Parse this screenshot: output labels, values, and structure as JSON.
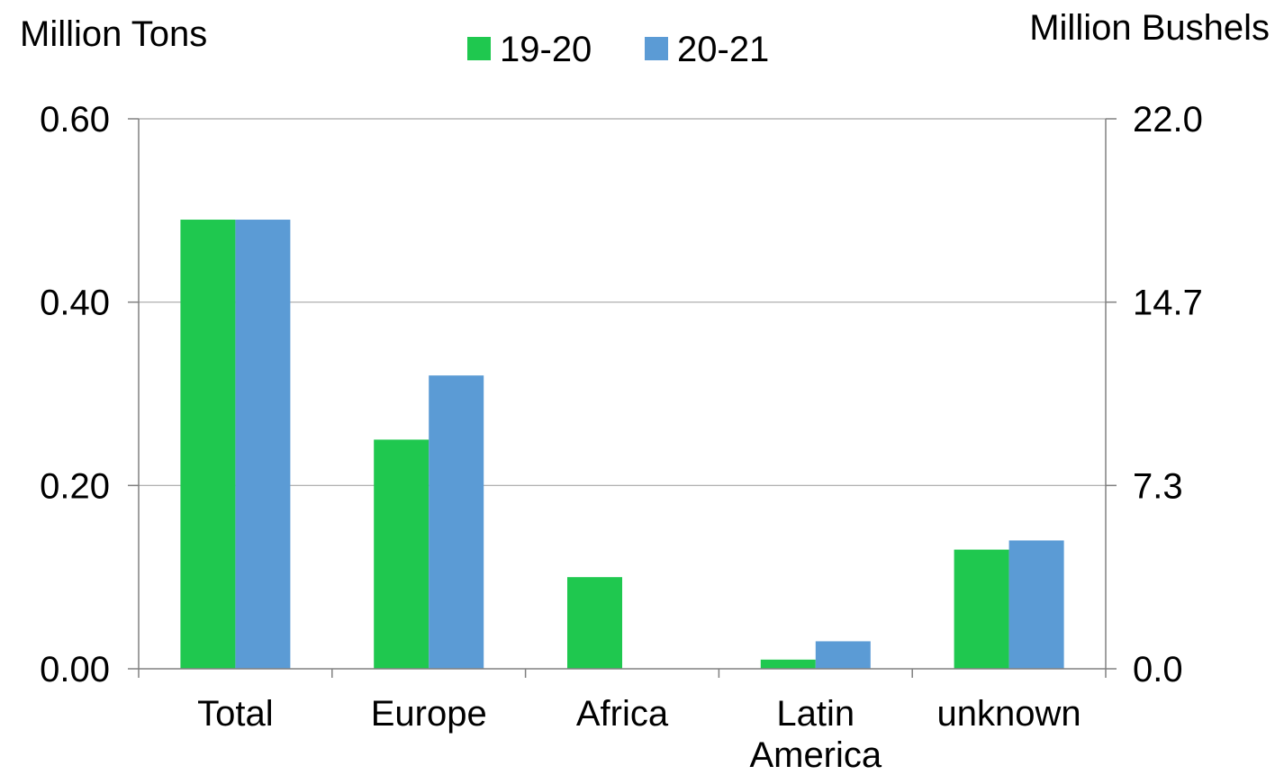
{
  "chart_data": {
    "type": "bar",
    "categories": [
      "Total",
      "Europe",
      "Africa",
      "Latin America",
      "unknown"
    ],
    "category_lines": [
      [
        "Total"
      ],
      [
        "Europe"
      ],
      [
        "Africa"
      ],
      [
        "Latin",
        "America"
      ],
      [
        "unknown"
      ]
    ],
    "series": [
      {
        "name": "19-20",
        "color": "#1fc84f",
        "values": [
          0.49,
          0.25,
          0.1,
          0.01,
          0.13
        ]
      },
      {
        "name": "20-21",
        "color": "#5b9bd5",
        "values": [
          0.49,
          0.32,
          0.0,
          0.03,
          0.14
        ]
      }
    ],
    "ylabel_left": "Million Tons",
    "ylabel_right": "Million Bushels",
    "ylim": [
      0,
      0.6
    ],
    "yticks_left": [
      "0.00",
      "0.20",
      "0.40",
      "0.60"
    ],
    "yticks_right": [
      "0.0",
      "7.3",
      "14.7",
      "22.0"
    ],
    "grid": true,
    "legend_position": "top-center"
  }
}
